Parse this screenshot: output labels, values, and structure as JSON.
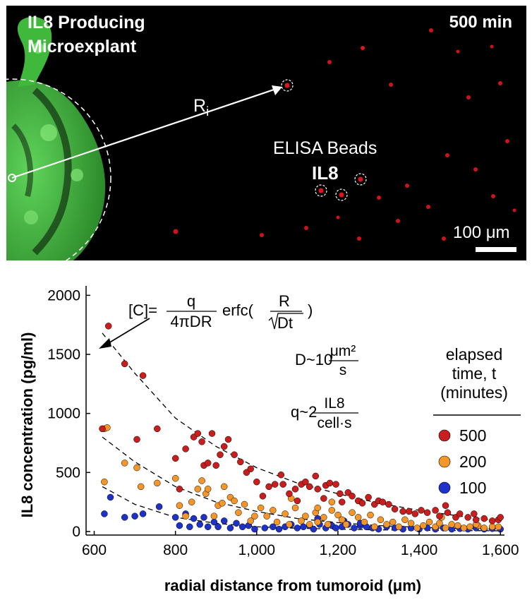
{
  "micrograph": {
    "title_line1": "IL8 Producing",
    "title_line2": "Microexplant",
    "time_label": "500 min",
    "radius_label": "R",
    "radius_subscript": "i",
    "beads_label": "ELISA Beads",
    "analyte_label": "IL8",
    "scale_bar_label": "100 μm",
    "colors": {
      "background": "#000000",
      "tissue": "#3fb83c",
      "beads": "#e0141c",
      "annotation": "#ffffff"
    }
  },
  "equations": {
    "c_lhs": "[C]=",
    "c_num": "q",
    "c_den": "4πDR",
    "erfc": "erfc(",
    "erfc_num": "R",
    "erfc_den": "Dt",
    "erfc_close": ")",
    "d_prefix": "D~10",
    "d_num": "μm²",
    "d_den": "s",
    "q_prefix": "q~2",
    "q_num": "IL8",
    "q_den": "cell·s"
  },
  "legend": {
    "title_lines": [
      "elapsed",
      "time, t",
      "(minutes)"
    ]
  },
  "chart_data": {
    "type": "scatter",
    "xlabel": "radial distance from tumoroid (μm)",
    "ylabel": "IL8 concentration (pg/ml)",
    "xlim": [
      580,
      1610
    ],
    "ylim": [
      -30,
      2080
    ],
    "x_ticks": [
      600,
      800,
      1000,
      1200,
      1400,
      1600
    ],
    "x_tick_labels": [
      "600",
      "800",
      "1,000",
      "1,200",
      "1,400",
      "1,600"
    ],
    "y_ticks": [
      0,
      500,
      1000,
      1500,
      2000
    ],
    "y_tick_labels": [
      "0",
      "500",
      "1000",
      "1500",
      "2000"
    ],
    "legend_position": "right",
    "grid": false,
    "series": [
      {
        "name": "500",
        "color": "#c81e1e",
        "fit": [
          [
            620,
            1680
          ],
          [
            700,
            1340
          ],
          [
            800,
            960
          ],
          [
            900,
            720
          ],
          [
            1000,
            540
          ],
          [
            1100,
            410
          ],
          [
            1200,
            320
          ],
          [
            1300,
            240
          ],
          [
            1400,
            180
          ],
          [
            1500,
            130
          ],
          [
            1600,
            90
          ]
        ],
        "points": [
          [
            635,
            1740
          ],
          [
            675,
            1420
          ],
          [
            720,
            1320
          ],
          [
            620,
            870
          ],
          [
            705,
            780
          ],
          [
            755,
            870
          ],
          [
            800,
            620
          ],
          [
            810,
            360
          ],
          [
            825,
            700
          ],
          [
            845,
            800
          ],
          [
            855,
            830
          ],
          [
            865,
            760
          ],
          [
            870,
            560
          ],
          [
            880,
            580
          ],
          [
            890,
            830
          ],
          [
            900,
            560
          ],
          [
            910,
            650
          ],
          [
            920,
            720
          ],
          [
            930,
            780
          ],
          [
            945,
            650
          ],
          [
            960,
            590
          ],
          [
            975,
            500
          ],
          [
            985,
            530
          ],
          [
            1000,
            420
          ],
          [
            1015,
            300
          ],
          [
            1030,
            380
          ],
          [
            1045,
            400
          ],
          [
            1060,
            480
          ],
          [
            1065,
            400
          ],
          [
            1080,
            320
          ],
          [
            1095,
            360
          ],
          [
            1100,
            260
          ],
          [
            1110,
            400
          ],
          [
            1120,
            420
          ],
          [
            1130,
            380
          ],
          [
            1145,
            470
          ],
          [
            1150,
            360
          ],
          [
            1165,
            280
          ],
          [
            1170,
            390
          ],
          [
            1180,
            410
          ],
          [
            1195,
            400
          ],
          [
            1205,
            320
          ],
          [
            1210,
            250
          ],
          [
            1225,
            330
          ],
          [
            1235,
            300
          ],
          [
            1250,
            260
          ],
          [
            1260,
            240
          ],
          [
            1275,
            290
          ],
          [
            1290,
            230
          ],
          [
            1300,
            260
          ],
          [
            1310,
            250
          ],
          [
            1325,
            230
          ],
          [
            1340,
            190
          ],
          [
            1360,
            170
          ],
          [
            1375,
            170
          ],
          [
            1390,
            150
          ],
          [
            1405,
            180
          ],
          [
            1420,
            160
          ],
          [
            1440,
            180
          ],
          [
            1450,
            130
          ],
          [
            1470,
            160
          ],
          [
            1490,
            120
          ],
          [
            1500,
            150
          ],
          [
            1520,
            120
          ],
          [
            1540,
            100
          ],
          [
            1560,
            110
          ],
          [
            1580,
            90
          ],
          [
            1595,
            100
          ],
          [
            1600,
            120
          ],
          [
            1465,
            220
          ],
          [
            1535,
            150
          ]
        ]
      },
      {
        "name": "200",
        "color": "#f5962a",
        "fit": [
          [
            620,
            800
          ],
          [
            700,
            590
          ],
          [
            800,
            380
          ],
          [
            900,
            250
          ],
          [
            1000,
            170
          ],
          [
            1100,
            110
          ],
          [
            1200,
            75
          ],
          [
            1300,
            50
          ],
          [
            1400,
            35
          ],
          [
            1500,
            25
          ],
          [
            1600,
            20
          ]
        ],
        "points": [
          [
            625,
            870
          ],
          [
            632,
            880
          ],
          [
            625,
            420
          ],
          [
            675,
            580
          ],
          [
            705,
            540
          ],
          [
            715,
            380
          ],
          [
            755,
            410
          ],
          [
            800,
            450
          ],
          [
            810,
            220
          ],
          [
            825,
            130
          ],
          [
            840,
            250
          ],
          [
            855,
            360
          ],
          [
            865,
            430
          ],
          [
            875,
            320
          ],
          [
            880,
            360
          ],
          [
            895,
            130
          ],
          [
            905,
            220
          ],
          [
            915,
            240
          ],
          [
            920,
            380
          ],
          [
            935,
            290
          ],
          [
            945,
            260
          ],
          [
            955,
            160
          ],
          [
            970,
            230
          ],
          [
            985,
            90
          ],
          [
            995,
            130
          ],
          [
            1010,
            200
          ],
          [
            1025,
            130
          ],
          [
            1040,
            180
          ],
          [
            1050,
            80
          ],
          [
            1070,
            150
          ],
          [
            1080,
            60
          ],
          [
            1085,
            280
          ],
          [
            1095,
            200
          ],
          [
            1110,
            90
          ],
          [
            1120,
            130
          ],
          [
            1130,
            60
          ],
          [
            1145,
            160
          ],
          [
            1150,
            80
          ],
          [
            1165,
            120
          ],
          [
            1175,
            60
          ],
          [
            1185,
            180
          ],
          [
            1200,
            140
          ],
          [
            1210,
            100
          ],
          [
            1220,
            60
          ],
          [
            1235,
            160
          ],
          [
            1250,
            120
          ],
          [
            1265,
            80
          ],
          [
            1280,
            140
          ],
          [
            1290,
            40
          ],
          [
            1305,
            100
          ],
          [
            1320,
            60
          ],
          [
            1335,
            80
          ],
          [
            1350,
            40
          ],
          [
            1365,
            100
          ],
          [
            1380,
            70
          ],
          [
            1395,
            30
          ],
          [
            1410,
            50
          ],
          [
            1425,
            80
          ],
          [
            1440,
            40
          ],
          [
            1450,
            70
          ],
          [
            1465,
            30
          ],
          [
            1480,
            60
          ],
          [
            1495,
            50
          ],
          [
            1510,
            30
          ],
          [
            1525,
            40
          ],
          [
            1545,
            50
          ],
          [
            1560,
            30
          ],
          [
            1580,
            40
          ],
          [
            1595,
            40
          ],
          [
            1150,
            200
          ],
          [
            1185,
            250
          ],
          [
            1455,
            120
          ],
          [
            1540,
            60
          ]
        ]
      },
      {
        "name": "100",
        "color": "#1e32c8",
        "fit": [
          [
            620,
            380
          ],
          [
            700,
            230
          ],
          [
            800,
            120
          ],
          [
            900,
            70
          ],
          [
            1000,
            40
          ],
          [
            1100,
            28
          ],
          [
            1200,
            20
          ],
          [
            1300,
            14
          ],
          [
            1400,
            10
          ],
          [
            1500,
            8
          ],
          [
            1600,
            6
          ]
        ],
        "points": [
          [
            625,
            150
          ],
          [
            640,
            290
          ],
          [
            675,
            120
          ],
          [
            700,
            130
          ],
          [
            720,
            150
          ],
          [
            760,
            210
          ],
          [
            800,
            120
          ],
          [
            810,
            50
          ],
          [
            825,
            150
          ],
          [
            835,
            40
          ],
          [
            845,
            110
          ],
          [
            860,
            60
          ],
          [
            870,
            120
          ],
          [
            880,
            40
          ],
          [
            895,
            80
          ],
          [
            905,
            40
          ],
          [
            920,
            90
          ],
          [
            935,
            30
          ],
          [
            950,
            70
          ],
          [
            965,
            40
          ],
          [
            980,
            50
          ],
          [
            995,
            20
          ],
          [
            1020,
            30
          ],
          [
            1040,
            40
          ],
          [
            1055,
            20
          ],
          [
            1070,
            40
          ],
          [
            1085,
            60
          ],
          [
            1100,
            30
          ],
          [
            1115,
            40
          ],
          [
            1130,
            50
          ],
          [
            1140,
            20
          ],
          [
            1155,
            60
          ],
          [
            1170,
            30
          ],
          [
            1185,
            50
          ],
          [
            1195,
            30
          ],
          [
            1210,
            40
          ],
          [
            1225,
            60
          ],
          [
            1240,
            30
          ],
          [
            1255,
            50
          ],
          [
            1270,
            40
          ],
          [
            1285,
            30
          ],
          [
            1300,
            20
          ],
          [
            1320,
            40
          ],
          [
            1340,
            30
          ],
          [
            1360,
            20
          ],
          [
            1380,
            30
          ],
          [
            1400,
            20
          ],
          [
            1420,
            30
          ],
          [
            1440,
            20
          ],
          [
            1460,
            30
          ],
          [
            1480,
            20
          ],
          [
            1500,
            25
          ],
          [
            1520,
            20
          ],
          [
            1540,
            30
          ],
          [
            1560,
            20
          ],
          [
            1580,
            25
          ],
          [
            1600,
            20
          ],
          [
            1150,
            110
          ],
          [
            1215,
            90
          ],
          [
            1255,
            70
          ]
        ]
      }
    ]
  }
}
